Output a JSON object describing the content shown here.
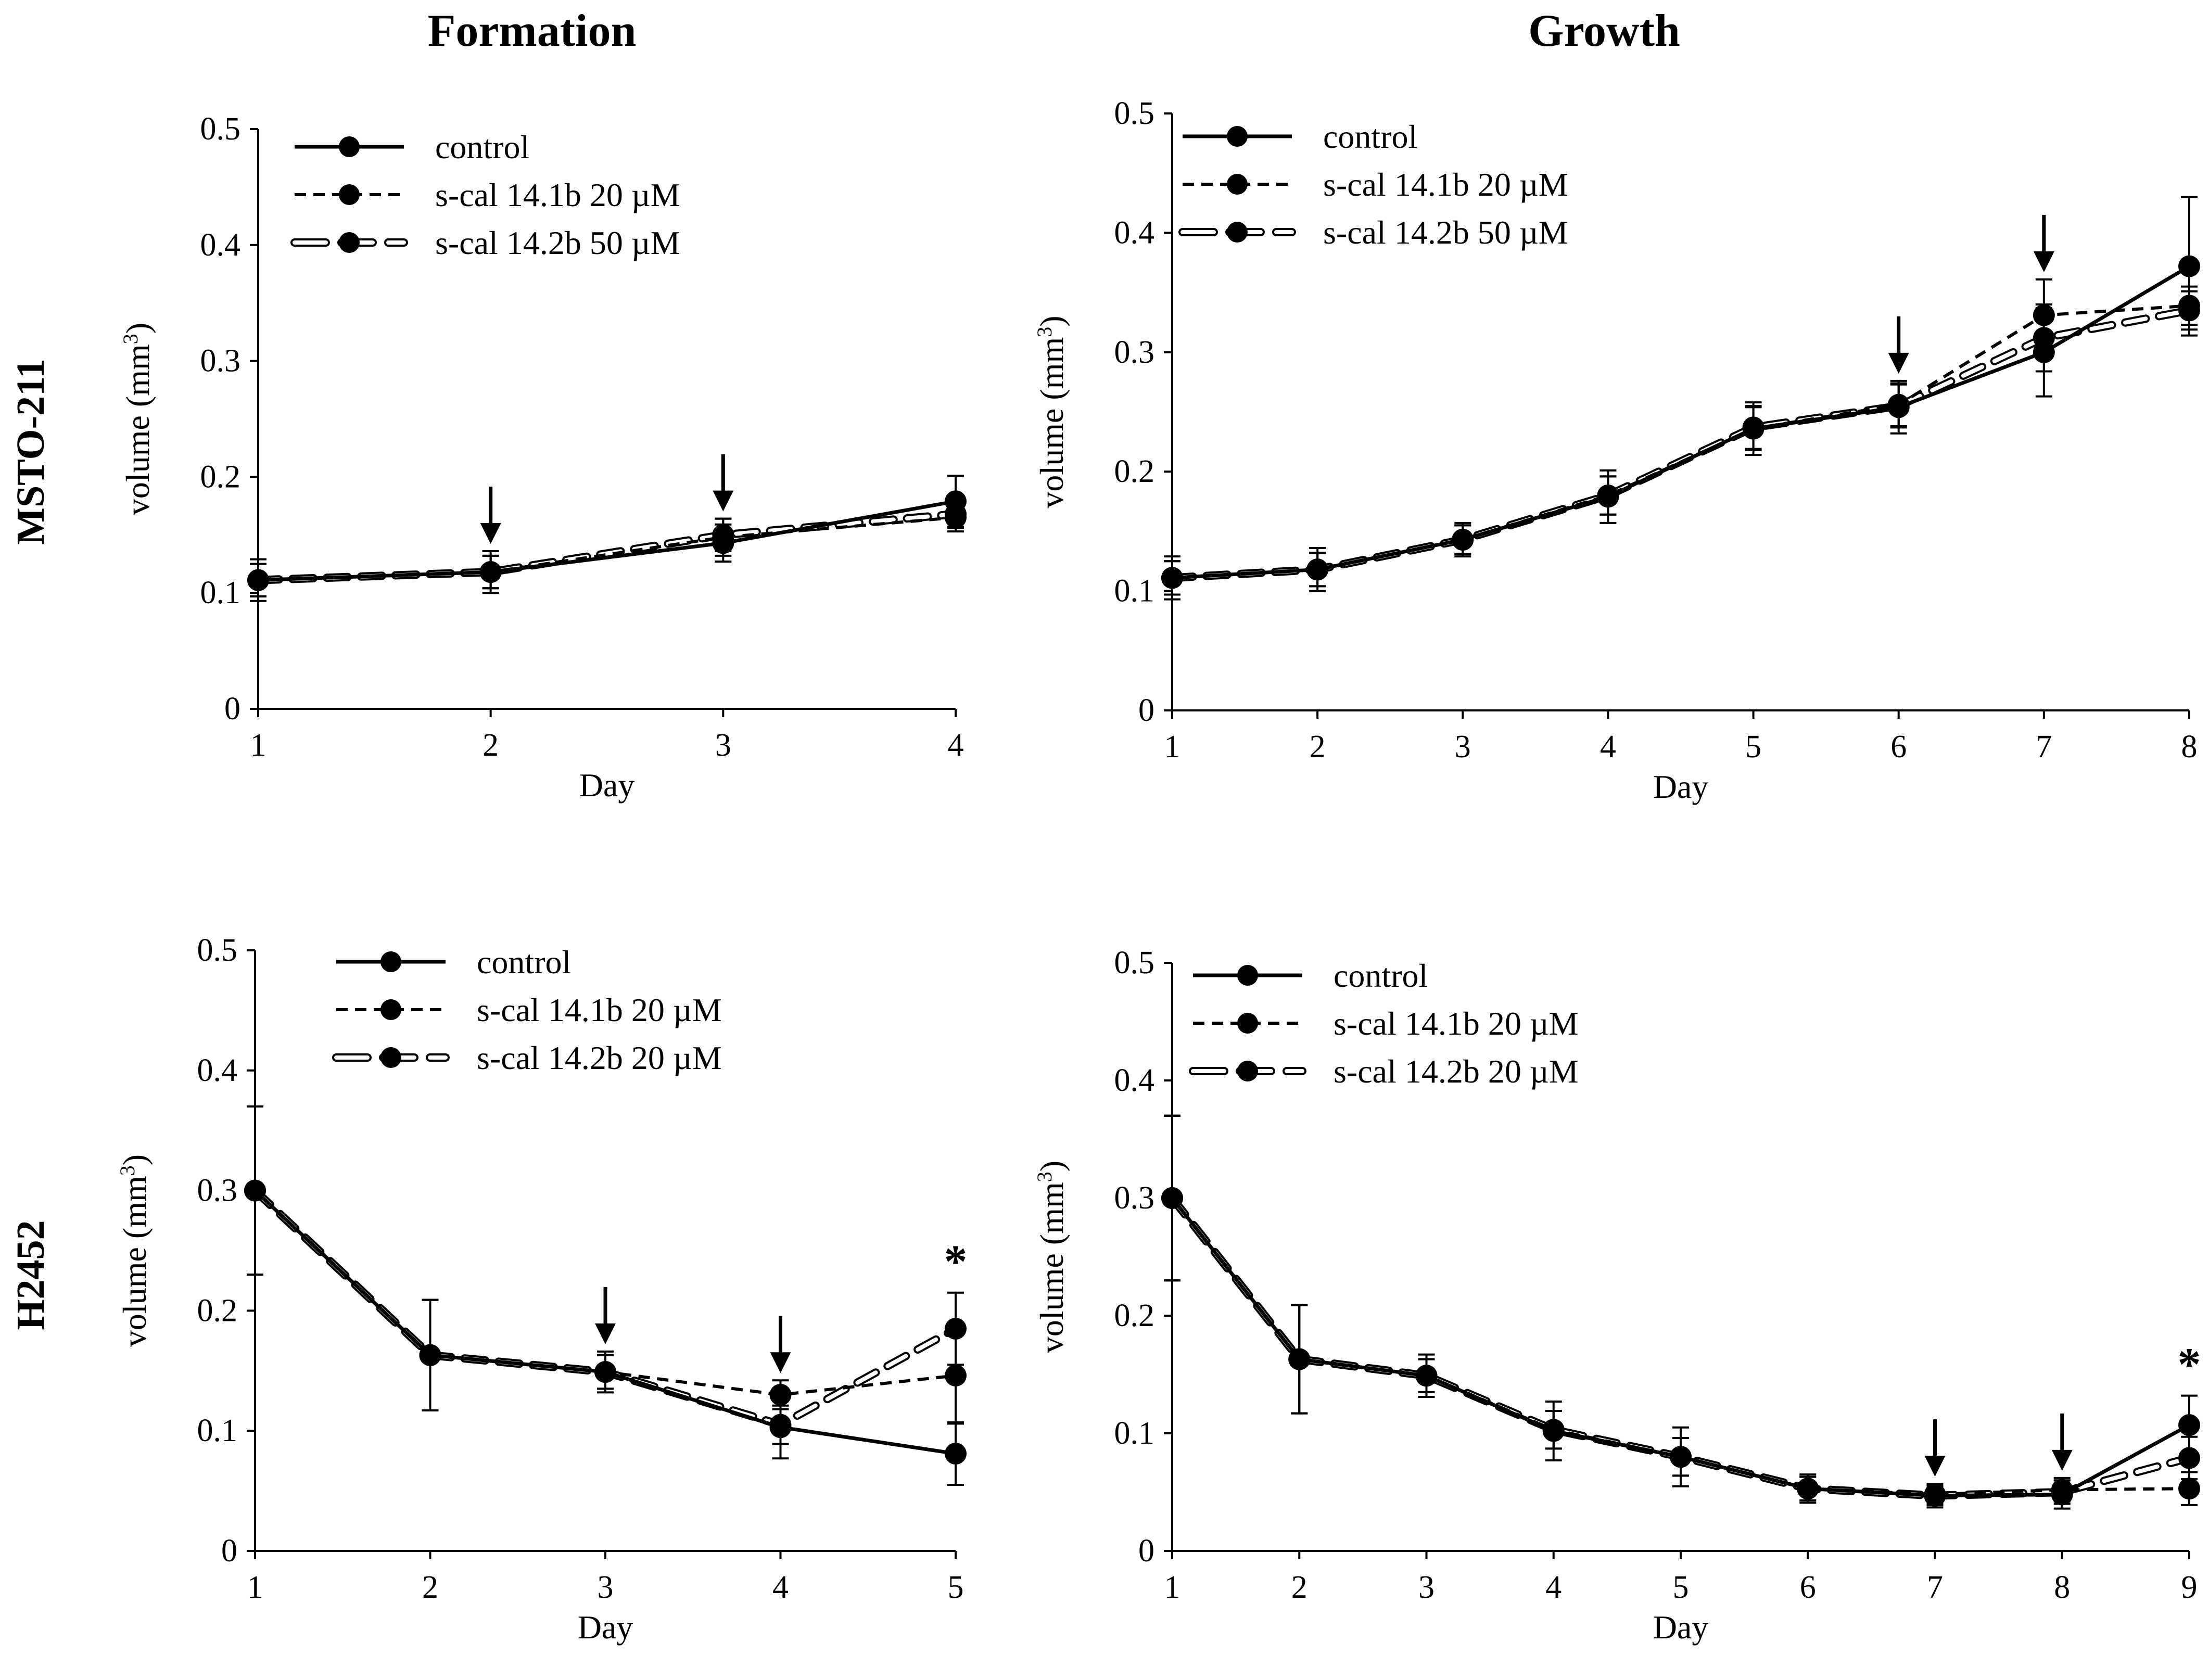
{
  "column_titles": [
    "Formation",
    "Growth"
  ],
  "row_labels": [
    "MSTO-211",
    "H2452"
  ],
  "chart_data": [
    {
      "type": "line",
      "column": "Formation",
      "row": "MSTO-211",
      "xlabel": "Day",
      "ylabel": "volume (mm",
      "ylabel_sup": "3",
      "ylabel_close": ")",
      "xlim": [
        1,
        4
      ],
      "ylim": [
        0,
        0.5
      ],
      "x_ticks": [
        "1",
        "2",
        "3",
        "4"
      ],
      "y_ticks": [
        "0",
        "0.1",
        "0.2",
        "0.3",
        "0.4",
        "0.5"
      ],
      "x": [
        1,
        2,
        3,
        4
      ],
      "series": [
        {
          "name": "control",
          "style": "solid",
          "values": [
            0.111,
            0.118,
            0.143,
            0.179
          ],
          "errors": [
            0.018,
            0.018,
            0.016,
            0.022
          ]
        },
        {
          "name": "s-cal 14.1b 20 µM",
          "style": "dashed",
          "values": [
            0.111,
            0.118,
            0.148,
            0.165
          ],
          "errors": [
            0.014,
            0.014,
            0.016,
            0.012
          ]
        },
        {
          "name": "s-cal 14.2b 50 µM",
          "style": "hollow",
          "values": [
            0.111,
            0.118,
            0.15,
            0.168
          ],
          "errors": [
            0.014,
            0.014,
            0.014,
            0.012
          ]
        }
      ],
      "arrows_at_day": [
        2,
        3
      ],
      "significance": []
    },
    {
      "type": "line",
      "column": "Growth",
      "row": "MSTO-211",
      "xlabel": "Day",
      "ylabel": "volume (mm",
      "ylabel_sup": "3",
      "ylabel_close": ")",
      "xlim": [
        1,
        8
      ],
      "ylim": [
        0,
        0.5
      ],
      "x_ticks": [
        "1",
        "2",
        "3",
        "4",
        "5",
        "6",
        "7",
        "8"
      ],
      "y_ticks": [
        "0",
        "0.1",
        "0.2",
        "0.3",
        "0.4",
        "0.5"
      ],
      "x": [
        1,
        2,
        3,
        4,
        5,
        6,
        7,
        8
      ],
      "series": [
        {
          "name": "control",
          "style": "solid",
          "values": [
            0.111,
            0.118,
            0.143,
            0.179,
            0.236,
            0.254,
            0.3,
            0.372
          ],
          "errors": [
            0.018,
            0.018,
            0.014,
            0.022,
            0.022,
            0.022,
            0.037,
            0.058
          ]
        },
        {
          "name": "s-cal 14.1b 20 µM",
          "style": "dashed",
          "values": [
            0.111,
            0.118,
            0.143,
            0.18,
            0.236,
            0.256,
            0.331,
            0.339
          ],
          "errors": [
            0.014,
            0.014,
            0.012,
            0.016,
            0.018,
            0.018,
            0.03,
            0.016
          ]
        },
        {
          "name": "s-cal 14.2b 50 µM",
          "style": "hollow",
          "values": [
            0.111,
            0.118,
            0.143,
            0.18,
            0.237,
            0.255,
            0.312,
            0.335
          ],
          "errors": [
            0.014,
            0.014,
            0.012,
            0.016,
            0.018,
            0.018,
            0.028,
            0.016
          ]
        }
      ],
      "arrows_at_day": [
        6,
        7
      ],
      "significance": []
    },
    {
      "type": "line",
      "column": "Formation",
      "row": "H2452",
      "xlabel": "Day",
      "ylabel": "volume (mm",
      "ylabel_sup": "3",
      "ylabel_close": ")",
      "xlim": [
        1,
        5
      ],
      "ylim": [
        0,
        0.5
      ],
      "x_ticks": [
        "1",
        "2",
        "3",
        "4",
        "5"
      ],
      "y_ticks": [
        "0",
        "0.1",
        "0.2",
        "0.3",
        "0.4",
        "0.5"
      ],
      "x": [
        1,
        2,
        3,
        4,
        5
      ],
      "series": [
        {
          "name": "control",
          "style": "solid",
          "values": [
            0.3,
            0.163,
            0.149,
            0.103,
            0.081
          ],
          "errors": [
            0.07,
            0.046,
            0.017,
            0.026,
            0.026
          ]
        },
        {
          "name": "s-cal 14.1b 20 µM",
          "style": "dashed",
          "values": [
            0.3,
            0.163,
            0.149,
            0.13,
            0.146
          ],
          "errors": [
            0.07,
            0.046,
            0.014,
            0.012,
            0.04
          ]
        },
        {
          "name": "s-cal 14.2b 20 µM",
          "style": "hollow",
          "values": [
            0.3,
            0.163,
            0.149,
            0.105,
            0.185
          ],
          "errors": [
            0.07,
            0.046,
            0.014,
            0.016,
            0.03
          ]
        }
      ],
      "arrows_at_day": [
        3,
        4
      ],
      "significance": [
        {
          "day": 5,
          "label": "*"
        }
      ]
    },
    {
      "type": "line",
      "column": "Growth",
      "row": "H2452",
      "xlabel": "Day",
      "ylabel": "volume (mm",
      "ylabel_sup": "3",
      "ylabel_close": ")",
      "xlim": [
        1,
        9
      ],
      "ylim": [
        0,
        0.5
      ],
      "x_ticks": [
        "1",
        "2",
        "3",
        "4",
        "5",
        "6",
        "7",
        "8",
        "9"
      ],
      "y_ticks": [
        "0",
        "0.1",
        "0.2",
        "0.3",
        "0.4",
        "0.5"
      ],
      "x": [
        1,
        2,
        3,
        4,
        5,
        6,
        7,
        8,
        9
      ],
      "series": [
        {
          "name": "control",
          "style": "solid",
          "values": [
            0.3,
            0.163,
            0.149,
            0.102,
            0.08,
            0.053,
            0.047,
            0.048,
            0.107
          ],
          "errors": [
            0.07,
            0.046,
            0.018,
            0.025,
            0.025,
            0.012,
            0.01,
            0.012,
            0.025
          ]
        },
        {
          "name": "s-cal 14.1b 20 µM",
          "style": "dashed",
          "values": [
            0.3,
            0.163,
            0.149,
            0.103,
            0.08,
            0.053,
            0.048,
            0.052,
            0.053
          ],
          "errors": [
            0.07,
            0.046,
            0.014,
            0.016,
            0.016,
            0.01,
            0.008,
            0.01,
            0.014
          ]
        },
        {
          "name": "s-cal 14.2b 20 µM",
          "style": "hollow",
          "values": [
            0.3,
            0.163,
            0.149,
            0.103,
            0.08,
            0.053,
            0.047,
            0.05,
            0.079
          ],
          "errors": [
            0.07,
            0.046,
            0.014,
            0.016,
            0.016,
            0.01,
            0.008,
            0.01,
            0.018
          ]
        }
      ],
      "arrows_at_day": [
        7,
        8
      ],
      "significance": [
        {
          "day": 9,
          "label": "*"
        }
      ]
    }
  ]
}
